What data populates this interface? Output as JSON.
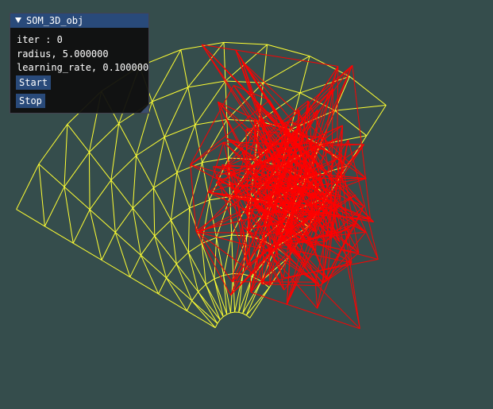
{
  "window": {
    "title": "SOM_3D_obj",
    "iter_text": "iter : 0",
    "radius_text": "radius, 5.000000",
    "learning_rate_text": "learning_rate, 0.100000",
    "start_label": "Start",
    "stop_label": "Stop"
  },
  "scene": {
    "background": "#354d4c",
    "som_mesh_color": "#ff0000",
    "target_surface_color": "#ffff33"
  }
}
